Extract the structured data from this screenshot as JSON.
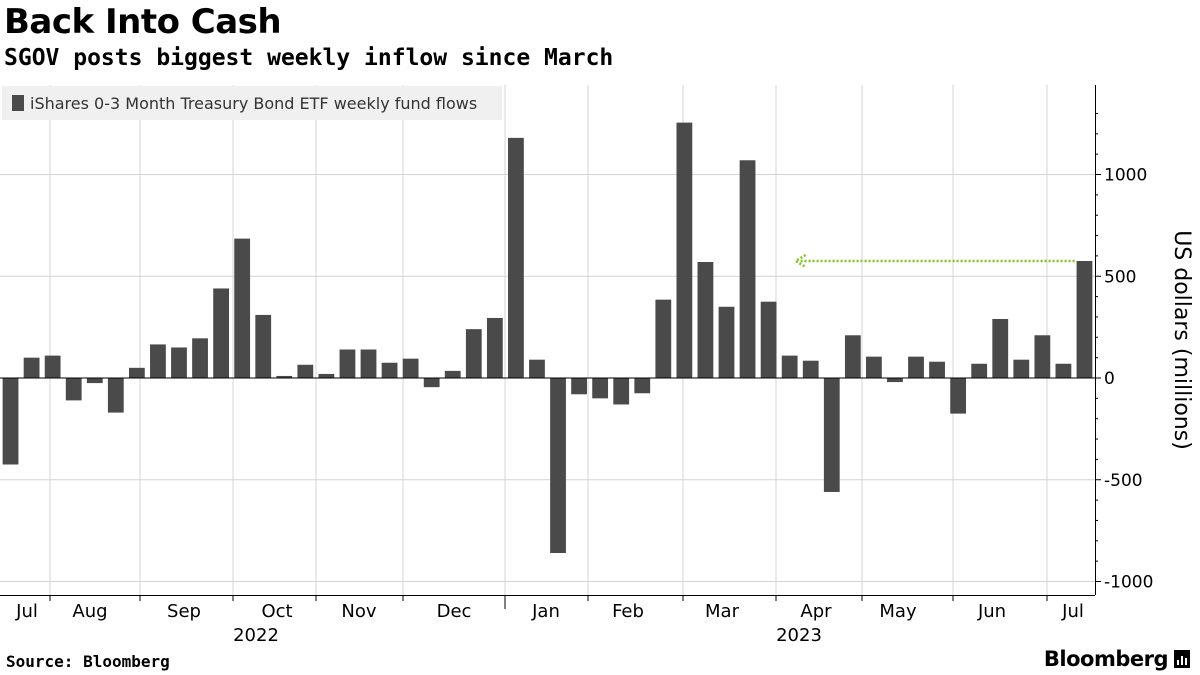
{
  "header": {
    "title": "Back Into Cash",
    "subtitle": "SGOV posts biggest weekly inflow since March"
  },
  "footer": {
    "source": "Source: Bloomberg",
    "brand": "Bloomberg",
    "brand_icon": "bloomberg-terminal-icon"
  },
  "colors": {
    "bar": "#4a4a4a",
    "grid": "#d4d4d4",
    "annotation_arrow": "#7fc41c"
  },
  "chart_data": {
    "type": "bar",
    "series": [
      {
        "name": "iShares 0-3 Month Treasury Bond ETF weekly fund flows",
        "values": [
          -425,
          100,
          110,
          -110,
          -25,
          -170,
          50,
          165,
          150,
          195,
          440,
          685,
          310,
          10,
          65,
          20,
          140,
          140,
          75,
          95,
          -45,
          35,
          240,
          295,
          1180,
          90,
          -860,
          -80,
          -100,
          -130,
          -75,
          385,
          1255,
          570,
          350,
          1070,
          375,
          110,
          85,
          -560,
          210,
          105,
          -20,
          105,
          80,
          -175,
          70,
          290,
          90,
          210,
          70,
          575
        ]
      }
    ],
    "x_tick_labels": [
      "Jul",
      "Aug",
      "Sep",
      "Oct",
      "Nov",
      "Dec",
      "Jan",
      "Feb",
      "Mar",
      "Apr",
      "May",
      "Jun",
      "Jul"
    ],
    "year_labels": [
      "2022",
      "2023"
    ],
    "ylabel": "US dollars (millions)",
    "ylim": [
      -1000,
      1400
    ],
    "y_ticks": [
      -1000,
      -500,
      0,
      500,
      1000
    ],
    "y_tick_labels": [
      "-1000",
      "-500",
      "0",
      "500",
      "1000"
    ],
    "y_axis_position": "right",
    "grid": true,
    "legend_placement": "top-left",
    "annotation": {
      "type": "arrow",
      "value": 575,
      "from_bar_index": 51,
      "to_bar_index": 37
    }
  }
}
